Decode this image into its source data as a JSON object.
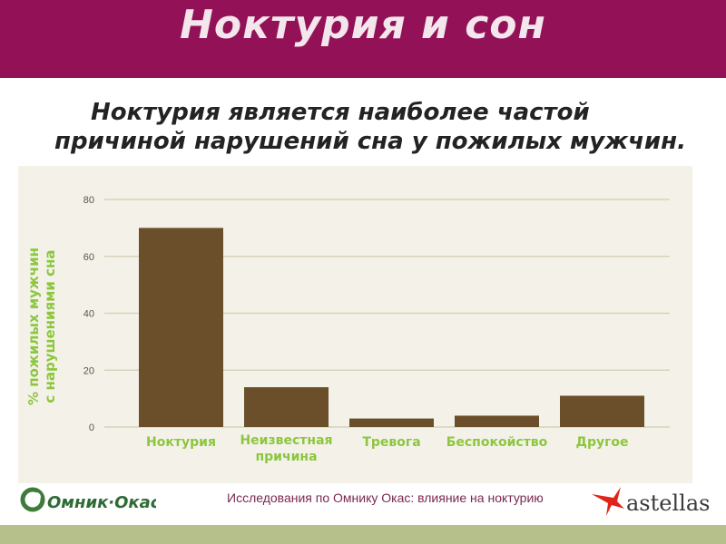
{
  "header": {
    "title": "Ноктурия и сон"
  },
  "subtitle": {
    "line1": "Ноктурия является наиболее частой",
    "line2": "причиной нарушений сна у пожилых мужчин."
  },
  "chart_data": {
    "type": "bar",
    "categories": [
      [
        "Ноктурия"
      ],
      [
        "Неизвестная",
        "причина"
      ],
      [
        "Тревога"
      ],
      [
        "Беспокойство"
      ],
      [
        "Другое"
      ]
    ],
    "values": [
      70,
      14,
      3,
      4,
      11
    ],
    "ylabel_lines": [
      "% пожилых мужчин",
      "с нарушениями сна"
    ],
    "ylim": [
      0,
      80
    ],
    "yticks": [
      0,
      20,
      40,
      60,
      80
    ],
    "grid": true,
    "bar_color": "#6b4e2a",
    "label_color": "#8cc63f"
  },
  "footer": {
    "logo_text": "Омник·Окас",
    "caption": "Исследования по Омнику Окас: влияние на ноктурию",
    "company": "astellas"
  },
  "colors": {
    "header": "#931257",
    "panel": "#f4f2e8",
    "bottom_bar": "#b5c08a"
  }
}
